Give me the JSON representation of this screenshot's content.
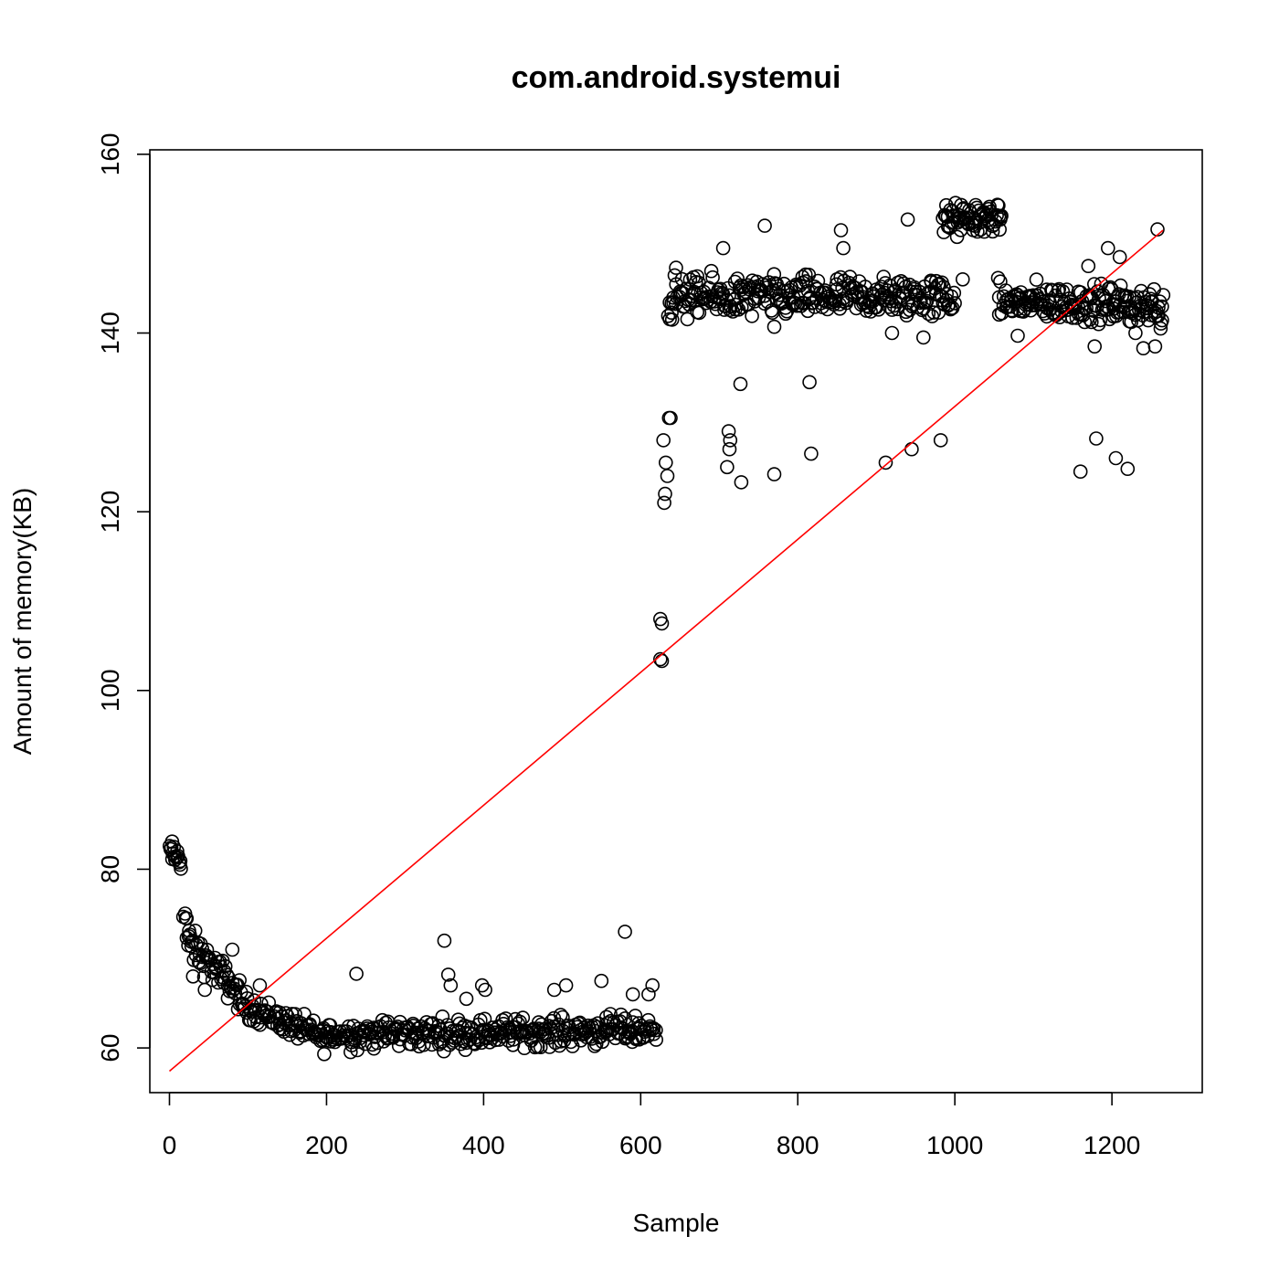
{
  "chart_data": {
    "type": "scatter",
    "title": "com.android.systemui",
    "xlabel": "Sample",
    "ylabel": "Amount of memory(KB)",
    "xlim": [
      -25,
      1315
    ],
    "ylim": [
      55,
      160.5
    ],
    "xticks": [
      0,
      200,
      400,
      600,
      800,
      1000,
      1200
    ],
    "yticks": [
      60,
      80,
      100,
      120,
      140,
      160
    ],
    "grid": false,
    "point_color": "#000000",
    "trend_line": {
      "color": "#ff0000",
      "from": [
        0,
        57.4
      ],
      "to": [
        1265,
        151.5
      ]
    },
    "segments": [
      {
        "x_start": 0,
        "x_end": 15,
        "y_start": 82,
        "y_end": 81,
        "spread": 1.2,
        "n": 16
      },
      {
        "x_start": 18,
        "x_end": 22,
        "y_start": 75,
        "y_end": 74.5,
        "spread": 0.5,
        "n": 4
      },
      {
        "x_start": 22,
        "x_end": 90,
        "y_start": 72,
        "y_end": 66,
        "spread": 1.6,
        "n": 60
      },
      {
        "x_start": 90,
        "x_end": 200,
        "y_start": 65,
        "y_end": 61,
        "spread": 1.3,
        "n": 90
      },
      {
        "x_start": 200,
        "x_end": 620,
        "y_start": 61.5,
        "y_end": 62,
        "spread": 1.4,
        "n": 330
      },
      {
        "x_start": 635,
        "x_end": 1000,
        "y_start": 144,
        "y_end": 144,
        "spread": 2.0,
        "n": 300
      },
      {
        "x_start": 985,
        "x_end": 1060,
        "y_start": 152.5,
        "y_end": 153,
        "spread": 1.6,
        "n": 70
      },
      {
        "x_start": 1055,
        "x_end": 1265,
        "y_start": 143.5,
        "y_end": 143,
        "spread": 1.8,
        "n": 190
      }
    ],
    "points": [
      [
        30,
        68
      ],
      [
        45,
        66.5
      ],
      [
        80,
        71
      ],
      [
        115,
        67
      ],
      [
        238,
        68.3
      ],
      [
        350,
        72
      ],
      [
        355,
        68.2
      ],
      [
        358,
        67
      ],
      [
        378,
        65.5
      ],
      [
        398,
        67
      ],
      [
        402,
        66.5
      ],
      [
        490,
        66.5
      ],
      [
        505,
        67
      ],
      [
        550,
        67.5
      ],
      [
        580,
        73
      ],
      [
        590,
        66
      ],
      [
        615,
        67
      ],
      [
        610,
        66
      ],
      [
        625,
        108
      ],
      [
        627,
        107.5
      ],
      [
        625,
        103.5
      ],
      [
        627,
        103.3
      ],
      [
        629,
        128
      ],
      [
        630,
        121
      ],
      [
        631,
        122
      ],
      [
        632,
        125.5
      ],
      [
        634,
        124
      ],
      [
        636,
        130.5
      ],
      [
        638,
        130.5
      ],
      [
        710,
        125
      ],
      [
        712,
        129
      ],
      [
        713,
        127
      ],
      [
        714,
        128
      ],
      [
        727,
        134.3
      ],
      [
        728,
        123.3
      ],
      [
        770,
        124.2
      ],
      [
        815,
        134.5
      ],
      [
        817,
        126.5
      ],
      [
        912,
        125.5
      ],
      [
        945,
        127
      ],
      [
        982,
        128
      ],
      [
        1160,
        124.5
      ],
      [
        1180,
        128.2
      ],
      [
        1205,
        126
      ],
      [
        1220,
        124.8
      ],
      [
        645,
        147.3
      ],
      [
        705,
        149.5
      ],
      [
        758,
        152
      ],
      [
        855,
        151.5
      ],
      [
        858,
        149.5
      ],
      [
        940,
        152.7
      ],
      [
        1170,
        147.5
      ],
      [
        1210,
        148.5
      ],
      [
        1195,
        149.5
      ],
      [
        1258,
        151.6
      ],
      [
        1178,
        138.5
      ],
      [
        1230,
        140
      ],
      [
        1240,
        138.3
      ],
      [
        1255,
        138.5
      ],
      [
        1262,
        140.5
      ],
      [
        920,
        140
      ],
      [
        960,
        139.5
      ],
      [
        1080,
        139.7
      ],
      [
        770,
        140.7
      ],
      [
        640,
        141.5
      ],
      [
        1010,
        146
      ]
    ]
  }
}
